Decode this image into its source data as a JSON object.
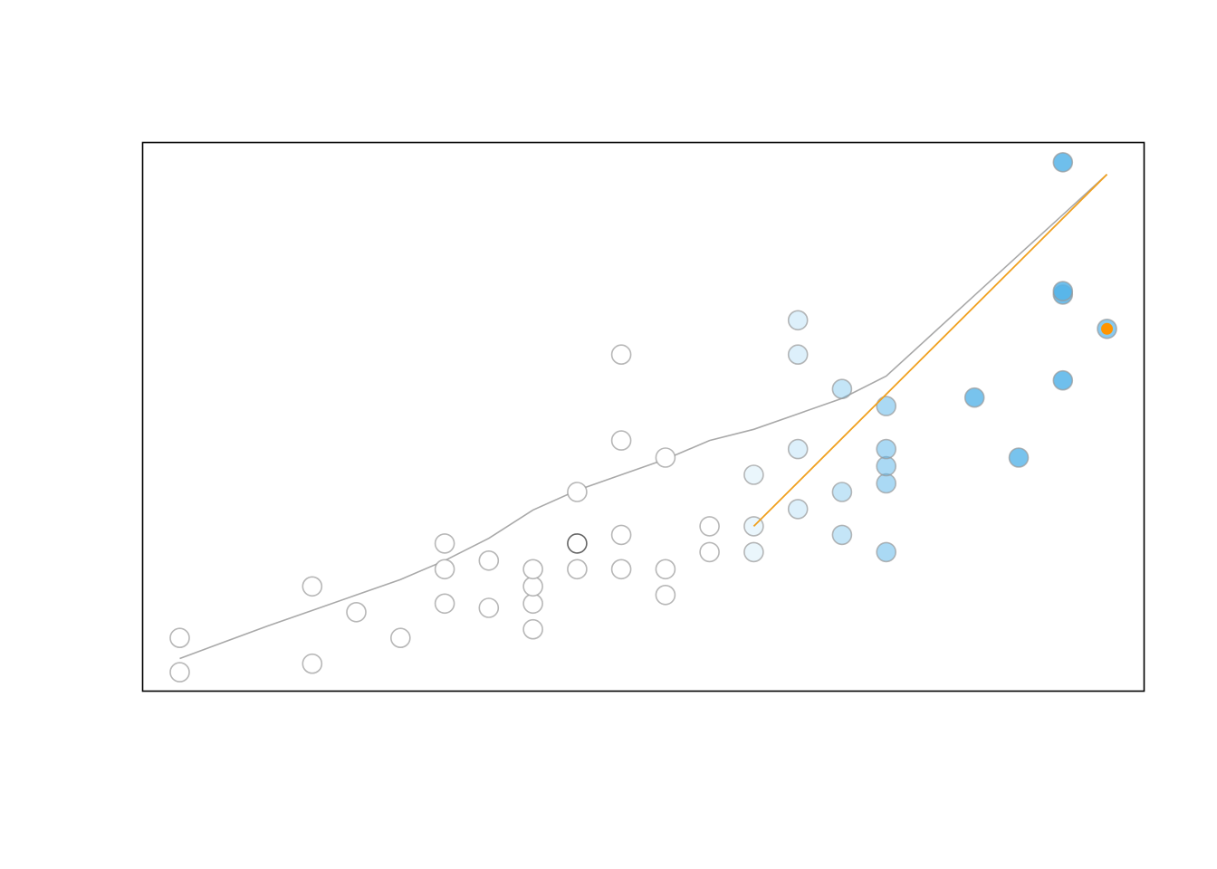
{
  "chart_data": {
    "type": "scatter",
    "title": "",
    "xlabel": "",
    "ylabel": "",
    "xlim": [
      0.16,
      22.84
    ],
    "ylim": [
      0.4,
      32.35
    ],
    "grid": false,
    "legend": "none",
    "colors": {
      "frame": "#000000",
      "point_stroke": "#999999",
      "highlight_point_stroke": "#666666",
      "fill_high": "#56B4E9",
      "trend_line": "#A9A9A9",
      "fit_line": "#F0A01E",
      "current_point": "#FF9400"
    },
    "points": [
      {
        "x": 1,
        "y": 1.5,
        "shade": 0
      },
      {
        "x": 1,
        "y": 3.5,
        "shade": 0
      },
      {
        "x": 4,
        "y": 2,
        "shade": 0
      },
      {
        "x": 4,
        "y": 6.5,
        "shade": 0
      },
      {
        "x": 5,
        "y": 5,
        "shade": 0
      },
      {
        "x": 6,
        "y": 3.5,
        "shade": 0
      },
      {
        "x": 7,
        "y": 5.5,
        "shade": 0
      },
      {
        "x": 7,
        "y": 7.5,
        "shade": 0
      },
      {
        "x": 7,
        "y": 9,
        "shade": 0
      },
      {
        "x": 8,
        "y": 5.25,
        "shade": 0
      },
      {
        "x": 8,
        "y": 8,
        "shade": 0
      },
      {
        "x": 9,
        "y": 4,
        "shade": 0
      },
      {
        "x": 9,
        "y": 5.5,
        "shade": 0
      },
      {
        "x": 9,
        "y": 6.5,
        "shade": 0
      },
      {
        "x": 9,
        "y": 7.5,
        "shade": 0
      },
      {
        "x": 10,
        "y": 7.5,
        "shade": 0
      },
      {
        "x": 10,
        "y": 9,
        "shade": 0,
        "dark_stroke": true
      },
      {
        "x": 10,
        "y": 12,
        "shade": 0
      },
      {
        "x": 11,
        "y": 7.5,
        "shade": 0
      },
      {
        "x": 11,
        "y": 9.5,
        "shade": 0
      },
      {
        "x": 11,
        "y": 15,
        "shade": 0
      },
      {
        "x": 11,
        "y": 20,
        "shade": 0
      },
      {
        "x": 12,
        "y": 6,
        "shade": 0
      },
      {
        "x": 12,
        "y": 7.5,
        "shade": 0
      },
      {
        "x": 12,
        "y": 14,
        "shade": 0
      },
      {
        "x": 13,
        "y": 8.5,
        "shade": 0
      },
      {
        "x": 13,
        "y": 10,
        "shade": 0
      },
      {
        "x": 14,
        "y": 8.5,
        "shade": 0.12
      },
      {
        "x": 14,
        "y": 10,
        "shade": 0.12
      },
      {
        "x": 14,
        "y": 13,
        "shade": 0.12
      },
      {
        "x": 15,
        "y": 11,
        "shade": 0.2
      },
      {
        "x": 15,
        "y": 14.5,
        "shade": 0.2
      },
      {
        "x": 15,
        "y": 20,
        "shade": 0.2
      },
      {
        "x": 15,
        "y": 22,
        "shade": 0.2
      },
      {
        "x": 16,
        "y": 9.5,
        "shade": 0.35
      },
      {
        "x": 16,
        "y": 12,
        "shade": 0.35
      },
      {
        "x": 16,
        "y": 18,
        "shade": 0.35
      },
      {
        "x": 17,
        "y": 8.5,
        "shade": 0.5
      },
      {
        "x": 17,
        "y": 12.5,
        "shade": 0.5
      },
      {
        "x": 17,
        "y": 13.5,
        "shade": 0.5
      },
      {
        "x": 17,
        "y": 14.5,
        "shade": 0.5
      },
      {
        "x": 17,
        "y": 17,
        "shade": 0.5
      },
      {
        "x": 19,
        "y": 17.5,
        "shade": 0.8
      },
      {
        "x": 20,
        "y": 14,
        "shade": 0.8
      },
      {
        "x": 21,
        "y": 18.5,
        "shade": 0.85
      },
      {
        "x": 21,
        "y": 23.5,
        "shade": 0.85
      },
      {
        "x": 21,
        "y": 23.7,
        "shade": 0.85
      },
      {
        "x": 21,
        "y": 31.2,
        "shade": 0.85
      },
      {
        "x": 22,
        "y": 21.5,
        "shade": 0.7
      }
    ],
    "current_point": {
      "x": 22,
      "y": 21.5
    },
    "trend_line": {
      "x": [
        1,
        2,
        3,
        4,
        5,
        6,
        7,
        8,
        9,
        10,
        11,
        12,
        13,
        14,
        15,
        16,
        17,
        18,
        19,
        20,
        21,
        22
      ],
      "y": [
        2.3,
        3.25,
        4.2,
        5.1,
        6.0,
        6.9,
        8.0,
        9.3,
        10.95,
        12.1,
        13.0,
        13.9,
        15.0,
        15.65,
        16.55,
        17.45,
        18.75,
        21.1,
        23.45,
        25.8,
        28.15,
        30.5
      ]
    },
    "fit_line": {
      "x": [
        14,
        22
      ],
      "y": [
        10.0,
        30.5
      ]
    }
  }
}
